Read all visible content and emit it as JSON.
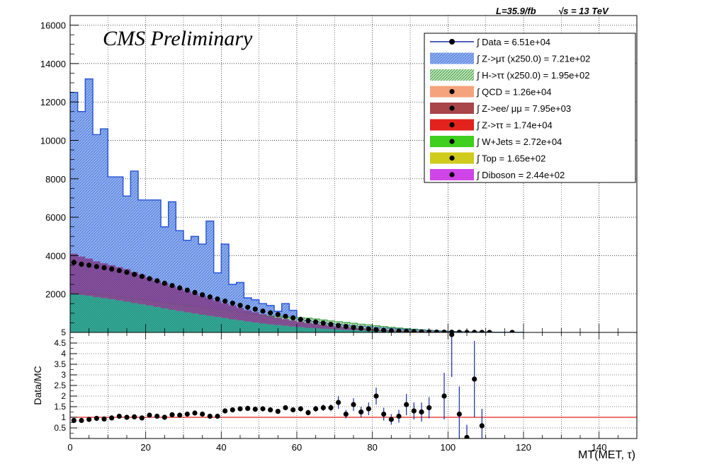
{
  "header": {
    "lumi": "L=35.9/fb",
    "energy": "√s = 13 TeV",
    "preliminary": "CMS Preliminary"
  },
  "colors": {
    "ztaumu": "#6f95e0",
    "ztaumu_line": "#2a55d6",
    "htautau": "#3fa24a",
    "qcd": "#f4a37c",
    "zeemumu": "#a8464a",
    "ztautau": "#e2221c",
    "wjets": "#3fcf1e",
    "top": "#cfcb1c",
    "diboson": "#cf45e8",
    "stack_purple": "#7a3a8c",
    "stack_teal": "#1f9a8a",
    "data": "#000000",
    "errorbar": "#1a2aa0",
    "unity": "#e0201c"
  },
  "legend": {
    "entries": [
      {
        "key": "data",
        "label": "∫ Data = 6.51e+04",
        "style": "marker"
      },
      {
        "key": "ztaumu",
        "label": "∫ Z->μτ (x250.0) = 7.21e+02",
        "style": "hatch"
      },
      {
        "key": "htautau",
        "label": "∫ H->ττ (x250.0) = 1.95e+02",
        "style": "hatch"
      },
      {
        "key": "qcd",
        "label": "∫ QCD = 1.26e+04",
        "style": "box"
      },
      {
        "key": "zeemumu",
        "label": "∫ Z->ee/ μμ = 7.95e+03",
        "style": "box"
      },
      {
        "key": "ztautau",
        "label": "∫ Z->ττ = 1.74e+04",
        "style": "box"
      },
      {
        "key": "wjets",
        "label": "∫ W+Jets = 2.72e+04",
        "style": "box"
      },
      {
        "key": "top",
        "label": "∫ Top = 1.65e+02",
        "style": "box"
      },
      {
        "key": "diboson",
        "label": "∫ Diboson = 2.44e+02",
        "style": "box"
      }
    ]
  },
  "chart_data": [
    {
      "type": "bar",
      "name": "main",
      "title": "",
      "xlabel": "",
      "ylabel": "",
      "xlim": [
        0,
        150
      ],
      "ylim": [
        0,
        16500
      ],
      "xticks": [
        0,
        20,
        40,
        60,
        80,
        100,
        120,
        140
      ],
      "yticks": [
        2000,
        4000,
        6000,
        8000,
        10000,
        12000,
        14000,
        16000
      ],
      "grid": true,
      "legend_position": "top-right",
      "bin_edges": [
        0,
        2,
        4,
        6,
        8,
        10,
        12,
        14,
        16,
        18,
        20,
        22,
        24,
        26,
        28,
        30,
        32,
        34,
        36,
        38,
        40,
        42,
        44,
        46,
        48,
        50,
        52,
        54,
        56,
        58,
        60,
        62,
        64,
        66,
        68,
        70,
        72,
        74,
        76,
        78,
        80,
        82,
        84,
        86,
        88,
        90,
        92,
        94,
        96,
        98,
        100,
        102,
        104,
        106,
        108,
        110,
        112,
        114,
        116,
        118,
        120
      ],
      "ztaumu_signal": [
        12500,
        11500,
        13200,
        10300,
        10600,
        8100,
        8100,
        7100,
        8400,
        6900,
        6900,
        6900,
        5500,
        6800,
        5300,
        4800,
        5000,
        4600,
        5800,
        3100,
        4600,
        2500,
        2600,
        1800,
        1700,
        1500,
        1400,
        1100,
        1500,
        1150,
        650,
        600,
        550,
        500,
        450,
        420,
        380,
        350,
        320,
        300,
        260,
        230,
        210,
        180,
        160,
        140,
        120,
        100,
        80,
        65,
        50,
        40,
        30,
        25,
        20,
        15,
        12,
        10,
        8,
        6
      ],
      "htautau_signal": [
        2100,
        2050,
        2000,
        1980,
        1950,
        1900,
        1850,
        1800,
        1750,
        1700,
        1650,
        1600,
        1550,
        1500,
        1450,
        1400,
        1350,
        1300,
        1250,
        1200,
        1150,
        1100,
        1050,
        1000,
        950,
        900,
        860,
        830,
        800,
        780,
        760,
        740,
        700,
        650,
        600,
        560,
        520,
        480,
        430,
        390,
        350,
        310,
        270,
        230,
        200,
        170,
        140,
        110,
        90,
        70,
        50,
        40,
        30,
        25,
        20,
        15,
        12,
        10,
        8,
        6
      ],
      "stack_total": [
        4100,
        3950,
        3850,
        3700,
        3600,
        3500,
        3400,
        3300,
        3150,
        3000,
        2850,
        2700,
        2560,
        2420,
        2280,
        2150,
        2020,
        1900,
        1780,
        1650,
        1520,
        1400,
        1280,
        1150,
        1050,
        950,
        860,
        770,
        690,
        620,
        560,
        500,
        450,
        400,
        360,
        320,
        280,
        250,
        220,
        190,
        160,
        140,
        120,
        100,
        85,
        70,
        58,
        48,
        40,
        32,
        26,
        20,
        16,
        12,
        10,
        8,
        6,
        5,
        4,
        3
      ],
      "stack_lower": [
        2000,
        1950,
        1900,
        1830,
        1780,
        1720,
        1660,
        1600,
        1530,
        1460,
        1390,
        1320,
        1250,
        1180,
        1110,
        1040,
        980,
        920,
        860,
        800,
        740,
        680,
        620,
        560,
        510,
        460,
        420,
        380,
        340,
        300,
        270,
        240,
        210,
        190,
        170,
        150,
        130,
        115,
        100,
        85,
        72,
        60,
        50,
        42,
        35,
        28,
        23,
        19,
        15,
        12,
        10,
        8,
        6,
        5,
        4,
        3,
        2,
        2,
        1,
        1
      ],
      "data_x": [
        1,
        3,
        5,
        7,
        9,
        11,
        13,
        15,
        17,
        19,
        21,
        23,
        25,
        27,
        29,
        31,
        33,
        35,
        37,
        39,
        41,
        43,
        45,
        47,
        49,
        51,
        53,
        55,
        57,
        59,
        61,
        63,
        65,
        67,
        69,
        71,
        73,
        75,
        77,
        79,
        81,
        83,
        85,
        87,
        89,
        91,
        93,
        95,
        97,
        99,
        101,
        103,
        105,
        107,
        109,
        111,
        117
      ],
      "data_y": [
        3650,
        3550,
        3500,
        3430,
        3370,
        3300,
        3220,
        3130,
        3020,
        2920,
        2800,
        2690,
        2560,
        2440,
        2320,
        2200,
        2080,
        1960,
        1850,
        1740,
        1630,
        1520,
        1410,
        1310,
        1210,
        1110,
        1020,
        930,
        840,
        760,
        680,
        610,
        540,
        480,
        420,
        360,
        310,
        260,
        220,
        180,
        140,
        110,
        90,
        70,
        55,
        42,
        33,
        25,
        19,
        14,
        10,
        7,
        5,
        4,
        3,
        2,
        1
      ]
    },
    {
      "type": "scatter",
      "name": "ratio",
      "title": "",
      "xlabel": "MT(MET, τ)",
      "ylabel": "Data/MC",
      "xlim": [
        0,
        150
      ],
      "ylim": [
        0,
        5
      ],
      "xticks": [
        0,
        20,
        40,
        60,
        80,
        100,
        120,
        140
      ],
      "yticks": [
        0.5,
        1,
        1.5,
        2,
        2.5,
        3,
        3.5,
        4,
        4.5,
        5
      ],
      "yticklabels": [
        "0.5",
        "1",
        "1.5",
        "2",
        "2.5",
        "3",
        "3.5",
        "4",
        "4.5",
        "5"
      ],
      "reference_line": 1,
      "grid": true,
      "x": [
        1,
        3,
        5,
        7,
        9,
        11,
        13,
        15,
        17,
        19,
        21,
        23,
        25,
        27,
        29,
        31,
        33,
        35,
        37,
        39,
        41,
        43,
        45,
        47,
        49,
        51,
        53,
        55,
        57,
        59,
        61,
        63,
        65,
        67,
        69,
        71,
        73,
        75,
        77,
        79,
        81,
        83,
        85,
        87,
        89,
        91,
        93,
        95,
        99,
        101,
        103,
        105,
        107,
        109
      ],
      "y": [
        0.85,
        0.85,
        0.9,
        0.95,
        0.92,
        0.97,
        1.05,
        1.0,
        1.02,
        0.97,
        1.1,
        1.05,
        1.0,
        1.12,
        1.1,
        1.15,
        1.2,
        1.15,
        1.05,
        1.05,
        1.3,
        1.35,
        1.4,
        1.42,
        1.38,
        1.4,
        1.35,
        1.28,
        1.45,
        1.35,
        1.4,
        1.22,
        1.4,
        1.45,
        1.45,
        1.7,
        1.15,
        1.6,
        1.25,
        1.4,
        2.0,
        1.15,
        0.9,
        1.05,
        1.6,
        1.3,
        1.25,
        1.45,
        2.0,
        4.9,
        1.15,
        0.05,
        2.8,
        0.6
      ],
      "yerr": [
        0.03,
        0.03,
        0.03,
        0.03,
        0.03,
        0.03,
        0.03,
        0.03,
        0.03,
        0.04,
        0.04,
        0.04,
        0.04,
        0.04,
        0.05,
        0.05,
        0.05,
        0.05,
        0.05,
        0.06,
        0.06,
        0.07,
        0.07,
        0.08,
        0.08,
        0.09,
        0.09,
        0.1,
        0.1,
        0.11,
        0.12,
        0.13,
        0.14,
        0.15,
        0.16,
        0.3,
        0.2,
        0.3,
        0.25,
        0.3,
        0.4,
        0.3,
        0.25,
        0.3,
        0.5,
        0.4,
        0.45,
        0.5,
        1.1,
        2.0,
        1.3,
        0.6,
        1.8,
        0.8
      ]
    }
  ]
}
